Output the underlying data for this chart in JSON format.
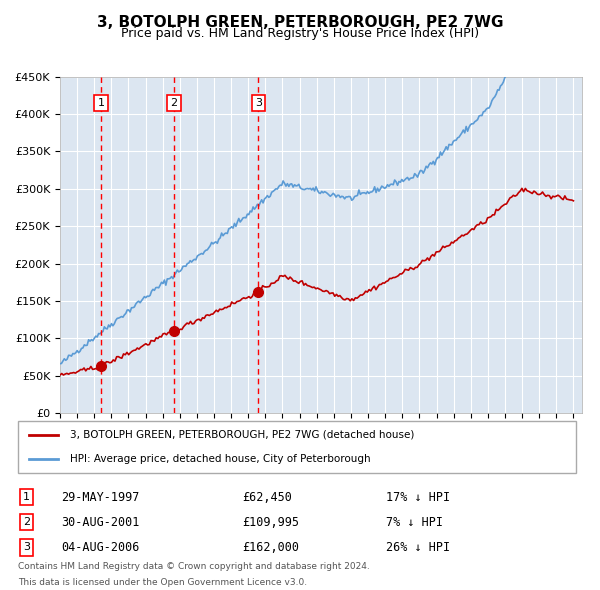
{
  "title": "3, BOTOLPH GREEN, PETERBOROUGH, PE2 7WG",
  "subtitle": "Price paid vs. HM Land Registry's House Price Index (HPI)",
  "transactions": [
    {
      "id": 1,
      "date": 1997.41,
      "price": 62450,
      "label": "29-MAY-1997",
      "price_str": "£62,450",
      "hpi_str": "17% ↓ HPI"
    },
    {
      "id": 2,
      "date": 2001.66,
      "price": 109995,
      "label": "30-AUG-2001",
      "price_str": "£109,995",
      "hpi_str": "7% ↓ HPI"
    },
    {
      "id": 3,
      "date": 2006.59,
      "price": 162000,
      "label": "04-AUG-2006",
      "price_str": "£162,000",
      "hpi_str": "26% ↓ HPI"
    }
  ],
  "hpi_line_color": "#5b9bd5",
  "price_line_color": "#c00000",
  "vline_color": "#ff0000",
  "bg_color": "#dce6f1",
  "plot_bg": "#dce6f1",
  "grid_color": "#ffffff",
  "ylabel_prefix": "£",
  "ylim": [
    0,
    450000
  ],
  "yticks": [
    0,
    50000,
    100000,
    150000,
    200000,
    250000,
    300000,
    350000,
    400000,
    450000
  ],
  "xlim": [
    1995,
    2025.5
  ],
  "xticks": [
    1995,
    1996,
    1997,
    1998,
    1999,
    2000,
    2001,
    2002,
    2003,
    2004,
    2005,
    2006,
    2007,
    2008,
    2009,
    2010,
    2011,
    2012,
    2013,
    2014,
    2015,
    2016,
    2017,
    2018,
    2019,
    2020,
    2021,
    2022,
    2023,
    2024,
    2025
  ],
  "footnote1": "Contains HM Land Registry data © Crown copyright and database right 2024.",
  "footnote2": "This data is licensed under the Open Government Licence v3.0.",
  "legend_label_red": "3, BOTOLPH GREEN, PETERBOROUGH, PE2 7WG (detached house)",
  "legend_label_blue": "HPI: Average price, detached house, City of Peterborough"
}
